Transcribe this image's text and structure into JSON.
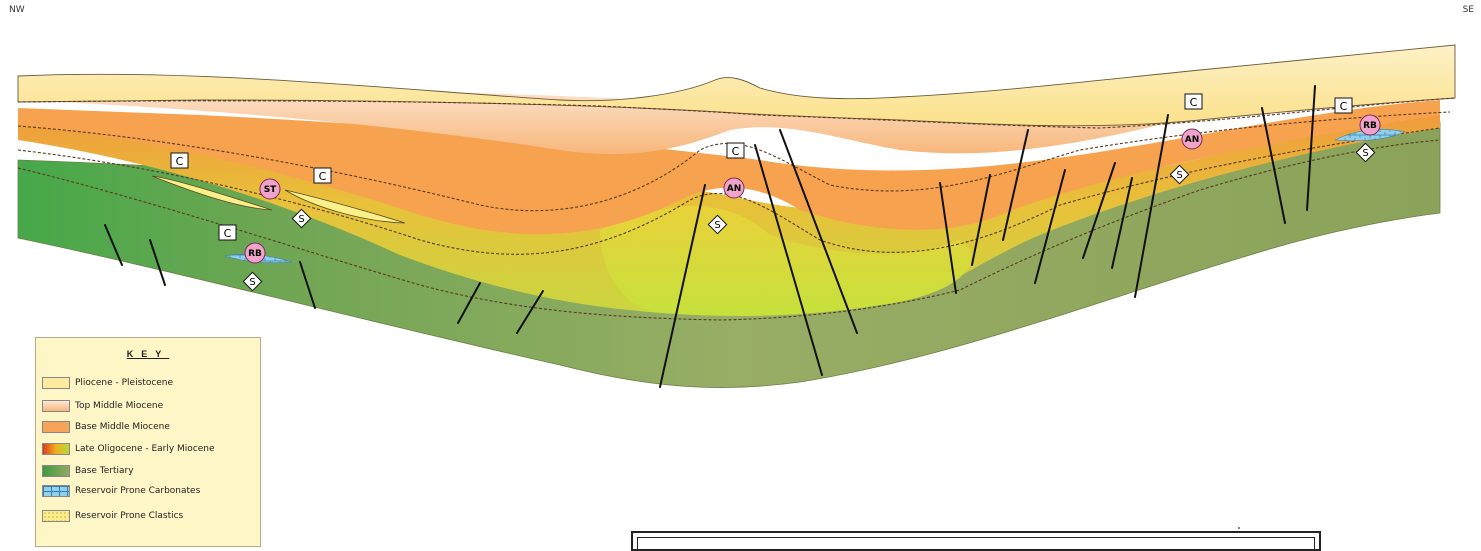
{
  "directions": {
    "left": "NW",
    "right": "SE"
  },
  "key": {
    "title": "KEY",
    "items": [
      {
        "label": "Pliocene - Pleistocene",
        "swatch": "#fdea9e"
      },
      {
        "label": "Top Middle Miocene",
        "swatch": "#fbd6b6"
      },
      {
        "label": "Base Middle Miocene",
        "swatch": "#f7a35a"
      },
      {
        "label": "Late Oligocene - Early Miocene",
        "swatch": "gradient-orange-yellow-green"
      },
      {
        "label": "Base Tertiary",
        "swatch": "gradient-green"
      },
      {
        "label": "Reservoir Prone Carbonates",
        "swatch": "brick-blue"
      },
      {
        "label": "Reservoir Prone Clastics",
        "swatch": "dotted-yellow"
      }
    ]
  },
  "markers": [
    {
      "text": "C",
      "type": "cap-rock"
    },
    {
      "text": "C",
      "type": "cap-rock"
    },
    {
      "text": "C",
      "type": "cap-rock"
    },
    {
      "text": "C",
      "type": "cap-rock"
    },
    {
      "text": "C",
      "type": "cap-rock"
    },
    {
      "text": "C",
      "type": "cap-rock"
    },
    {
      "text": "ST",
      "type": "reservoir"
    },
    {
      "text": "RB",
      "type": "reservoir"
    },
    {
      "text": "AN",
      "type": "reservoir"
    },
    {
      "text": "AN",
      "type": "reservoir"
    },
    {
      "text": "RB",
      "type": "reservoir"
    },
    {
      "text": "S",
      "type": "source"
    },
    {
      "text": "S",
      "type": "source"
    },
    {
      "text": "S",
      "type": "source"
    },
    {
      "text": "S",
      "type": "source"
    },
    {
      "text": "S",
      "type": "source"
    }
  ],
  "colors": {
    "pliocene": "#fdeaa5",
    "top_middle_miocene": "#fbd3ad",
    "base_middle_miocene": "#f7a04f",
    "late_oligocene": "#d9c830",
    "base_tertiary": "#8aa85a",
    "base_tertiary_left": "#4faa4a",
    "carbonates": "#7ec8e8",
    "clastics": "#fbef8a"
  }
}
